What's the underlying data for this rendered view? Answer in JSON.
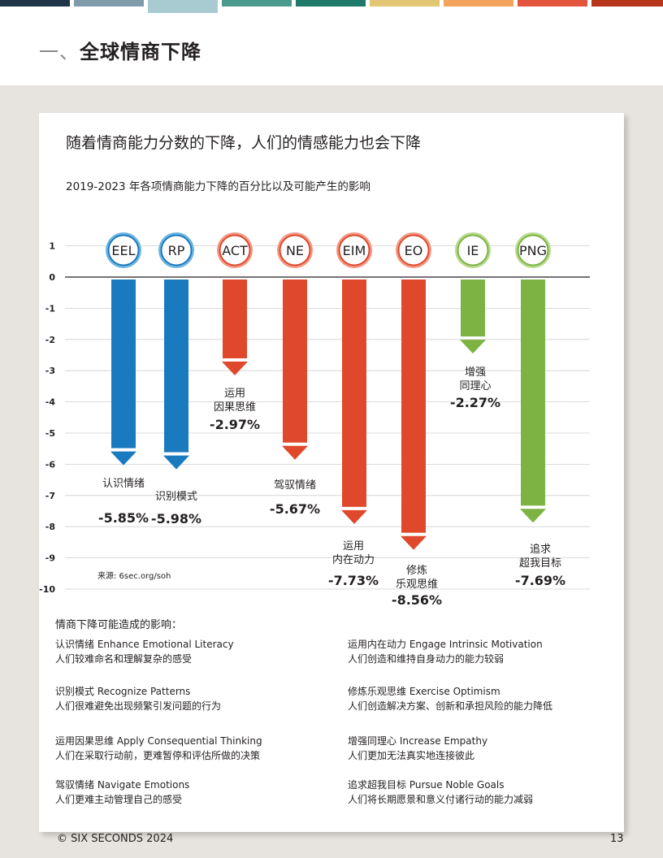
{
  "top_strip_colors": [
    "#1f3447",
    "#7f9aa8",
    "#a8cbd2",
    "#4a9b8e",
    "#1f7a6c",
    "#e2c673",
    "#f2a45e",
    "#e2543b",
    "#b8351e"
  ],
  "section": {
    "number": "一、",
    "title": "全球情商下降"
  },
  "card": {
    "title": "随着情商能力分数的下降，人们的情感能力也会下降",
    "subtitle": "2019-2023 年各项情商能力下降的百分比以及可能产生的影响"
  },
  "chart_data": {
    "type": "bar",
    "categories": [
      "EEL",
      "RP",
      "ACT",
      "NE",
      "EIM",
      "EO",
      "IE",
      "PNG"
    ],
    "values": [
      -5.85,
      -5.98,
      -2.97,
      -5.67,
      -7.73,
      -8.56,
      -2.27,
      -7.69
    ],
    "value_labels": [
      "-5.85%",
      "-5.98%",
      "-2.97%",
      "-5.67%",
      "-7.73%",
      "-8.56%",
      "-2.27%",
      "-7.69%"
    ],
    "category_names": [
      [
        "认识情绪"
      ],
      [
        "识别模式"
      ],
      [
        "运用",
        "因果思维"
      ],
      [
        "驾驭情绪"
      ],
      [
        "运用",
        "内在动力"
      ],
      [
        "修炼",
        "乐观思维"
      ],
      [
        "增强",
        "同理心"
      ],
      [
        "追求",
        "超我目标"
      ]
    ],
    "colors": [
      "#1a7abf",
      "#1a7abf",
      "#e0482c",
      "#e0482c",
      "#e0482c",
      "#e0482c",
      "#7cb342",
      "#7cb342"
    ],
    "yticks": [
      "1",
      "0",
      "-1",
      "-2",
      "-3",
      "-4",
      "-5",
      "-6",
      "-7",
      "-8",
      "-9",
      "-10"
    ],
    "ylim": [
      -10,
      1
    ],
    "grid": true,
    "source": "来源:  6sec.org/soh"
  },
  "impacts_heading": "情商下降可能造成的影响：",
  "impacts": [
    {
      "title": "认识情绪 Enhance Emotional Literacy",
      "desc": "人们较难命名和理解复杂的感受"
    },
    {
      "title": "识别模式 Recognize Patterns",
      "desc": "人们很难避免出现频繁引发问题的行为"
    },
    {
      "title": "运用因果思维 Apply Consequential Thinking",
      "desc": "人们在采取行动前，更难暂停和评估所做的决策"
    },
    {
      "title": "驾驭情绪 Navigate Emotions",
      "desc": "人们更难主动管理自己的感受"
    },
    {
      "title": "运用内在动力 Engage Intrinsic Motivation",
      "desc": "人们创造和维持自身动力的能力较弱"
    },
    {
      "title": "修炼乐观思维 Exercise Optimism",
      "desc": "人们创造解决方案、创新和承担风险的能力降低"
    },
    {
      "title": "增强同理心 Increase Empathy",
      "desc": "人们更加无法真实地连接彼此"
    },
    {
      "title": "追求超我目标 Pursue Noble Goals",
      "desc": "人们将长期愿景和意义付诸行动的能力减弱"
    }
  ],
  "footer": {
    "copyright": "© SIX SECONDS 2024",
    "page_number": "13"
  }
}
